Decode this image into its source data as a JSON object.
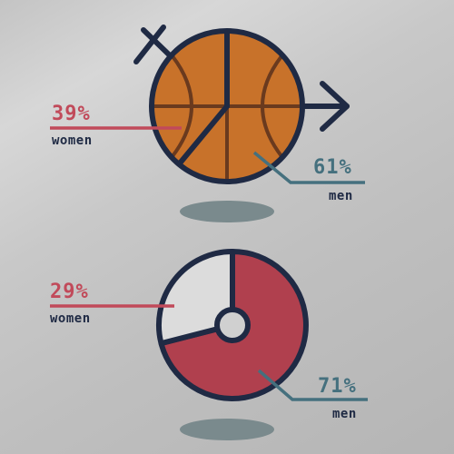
{
  "colors": {
    "navy": "#1f2a44",
    "women": "#c14a5a",
    "men": "#45707e",
    "ball": "#c8722a",
    "ball_lines": "#6a3a1e",
    "pie_light": "#dcdcdc",
    "pie_red": "#b0404e",
    "shadow": "#7a8a8d"
  },
  "chart_data": [
    {
      "type": "pie",
      "style": "basketball with gender symbols",
      "categories": [
        "women",
        "men"
      ],
      "values": [
        39,
        61
      ],
      "labels": [
        {
          "pct": "39%",
          "word": "women"
        },
        {
          "pct": "61%",
          "word": "men"
        }
      ]
    },
    {
      "type": "pie",
      "style": "donut",
      "categories": [
        "women",
        "men"
      ],
      "values": [
        29,
        71
      ],
      "labels": [
        {
          "pct": "29%",
          "word": "women"
        },
        {
          "pct": "71%",
          "word": "men"
        }
      ]
    }
  ]
}
